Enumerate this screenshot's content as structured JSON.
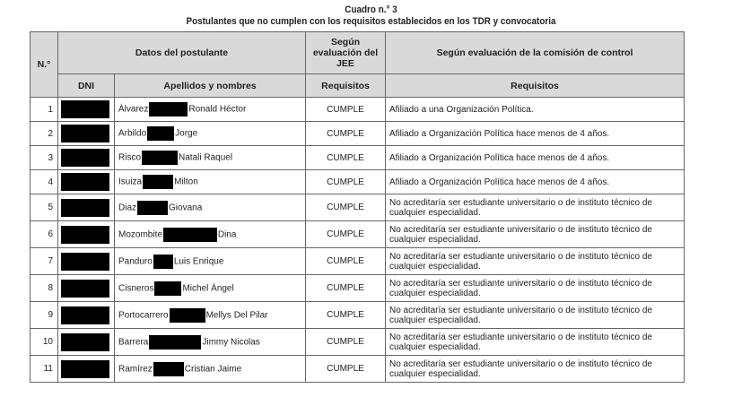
{
  "caption": "Cuadro n.° 3",
  "subtitle": "Postulantes que no cumplen con los requisitos establecidos en los TDR y convocatoria",
  "headers": {
    "num": "N.°",
    "datos": "Datos del postulante",
    "jee": "Según evaluación del JEE",
    "comision": "Según evaluación de la comisión de control",
    "dni": "DNI",
    "nombres": "Apellidos y nombres",
    "req_jee": "Requisitos",
    "req_comision": "Requisitos"
  },
  "rows": [
    {
      "n": "1",
      "surname": "Álvarez",
      "given": "Ronald Héctor",
      "jee": "CUMPLE",
      "comision": "Afiliado a una Organización Política."
    },
    {
      "n": "2",
      "surname": "Arbildo",
      "given": "Jorge",
      "jee": "CUMPLE",
      "comision": "Afiliado a Organización Política hace menos de 4 años."
    },
    {
      "n": "3",
      "surname": "Risco",
      "given": "Natali Raquel",
      "jee": "CUMPLE",
      "comision": "Afiliado a Organización Política hace menos de 4 años."
    },
    {
      "n": "4",
      "surname": "Isuiza",
      "given": "Milton",
      "jee": "CUMPLE",
      "comision": "Afiliado a Organización Política hace menos de 4 años."
    },
    {
      "n": "5",
      "surname": "Diaz",
      "given": "Giovana",
      "jee": "CUMPLE",
      "comision": "No acreditaría ser estudiante universitario o de instituto técnico de cualquier especialidad."
    },
    {
      "n": "6",
      "surname": "Mozombite",
      "given": "Dina",
      "jee": "CUMPLE",
      "comision": "No acreditaría ser estudiante universitario o de instituto técnico de cualquier especialidad."
    },
    {
      "n": "7",
      "surname": "Panduro",
      "given": "Luis Enrique",
      "jee": "CUMPLE",
      "comision": "No acreditaría ser estudiante universitario o de instituto técnico de cualquier especialidad."
    },
    {
      "n": "8",
      "surname": "Cisneros",
      "given": "Michel Ángel",
      "jee": "CUMPLE",
      "comision": "No acreditaría ser estudiante universitario o de instituto técnico de cualquier especialidad."
    },
    {
      "n": "9",
      "surname": "Portocarrero",
      "given": "Mellys Del Pilar",
      "jee": "CUMPLE",
      "comision": "No acreditaría ser estudiante universitario o de instituto técnico de cualquier especialidad."
    },
    {
      "n": "10",
      "surname": "Barrera",
      "given": "Jimmy Nicolas",
      "jee": "CUMPLE",
      "comision": "No acreditaría ser estudiante universitario o de instituto técnico de cualquier especialidad."
    },
    {
      "n": "11",
      "surname": "Ramírez",
      "given": "Cristian Jaime",
      "jee": "CUMPLE",
      "comision": "No acreditaría ser estudiante universitario o de instituto técnico de cualquier especialidad."
    }
  ]
}
